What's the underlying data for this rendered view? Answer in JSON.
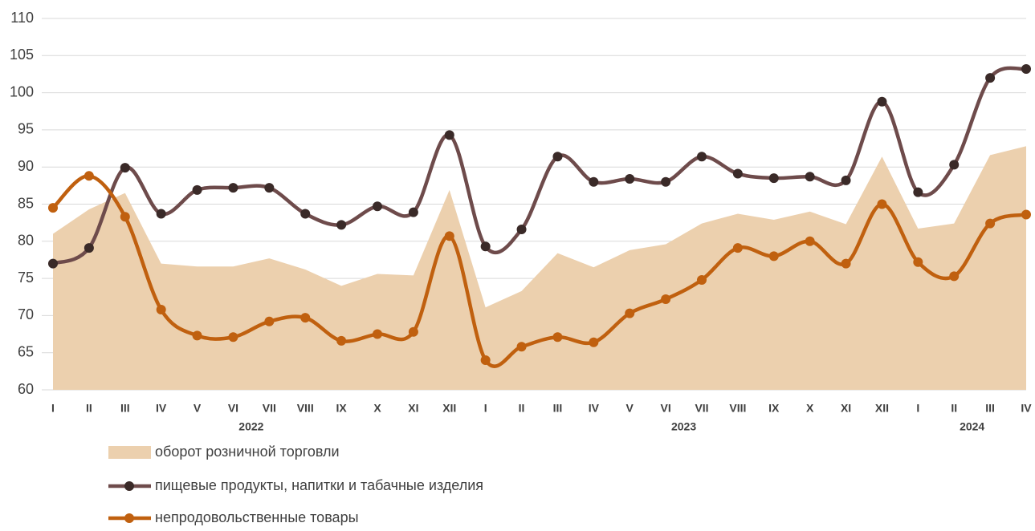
{
  "chart_data": {
    "type": "line",
    "categories": [
      "I",
      "II",
      "III",
      "IV",
      "V",
      "VI",
      "VII",
      "VIII",
      "IX",
      "X",
      "XI",
      "XII",
      "I",
      "II",
      "III",
      "IV",
      "V",
      "VI",
      "VII",
      "VIII",
      "IX",
      "X",
      "XI",
      "XII",
      "I",
      "II",
      "III",
      "IV"
    ],
    "groups": [
      {
        "label": "2022",
        "count": 12
      },
      {
        "label": "2023",
        "count": 12
      },
      {
        "label": "2024",
        "count": 4
      }
    ],
    "series": [
      {
        "name": "оборот розничной торговли",
        "kind": "area",
        "color": "#ecd0ae",
        "values": [
          81.0,
          84.3,
          86.5,
          77.0,
          76.6,
          76.6,
          77.7,
          76.2,
          74.0,
          75.6,
          75.4,
          86.9,
          71.1,
          73.3,
          78.4,
          76.5,
          78.8,
          79.6,
          82.4,
          83.7,
          82.9,
          84.0,
          82.3,
          91.4,
          81.7,
          82.4,
          91.6,
          92.8
        ]
      },
      {
        "name": "пищевые продукты, напитки и табачные изделия",
        "kind": "line",
        "color": "#6e4b4b",
        "marker_color": "#3a2a28",
        "values": [
          77.0,
          79.1,
          89.9,
          83.7,
          86.9,
          87.2,
          87.2,
          83.7,
          82.2,
          84.7,
          83.9,
          94.3,
          79.3,
          81.6,
          91.4,
          88.0,
          88.4,
          88.0,
          91.4,
          89.1,
          88.5,
          88.7,
          88.2,
          98.8,
          86.6,
          90.3,
          102.0,
          103.2
        ]
      },
      {
        "name": "непродовольственные товары",
        "kind": "line",
        "color": "#c0600f",
        "marker_color": "#c0600f",
        "values": [
          84.5,
          88.8,
          83.3,
          70.8,
          67.3,
          67.1,
          69.2,
          69.7,
          66.6,
          67.5,
          67.8,
          80.7,
          64.0,
          65.8,
          67.1,
          66.4,
          70.3,
          72.2,
          74.8,
          79.1,
          78.0,
          80.0,
          77.0,
          85.0,
          77.2,
          75.3,
          82.4,
          83.6
        ]
      }
    ],
    "ylim": [
      60,
      110
    ],
    "yticks": [
      60,
      65,
      70,
      75,
      80,
      85,
      90,
      95,
      100,
      105,
      110
    ],
    "grid": true
  }
}
